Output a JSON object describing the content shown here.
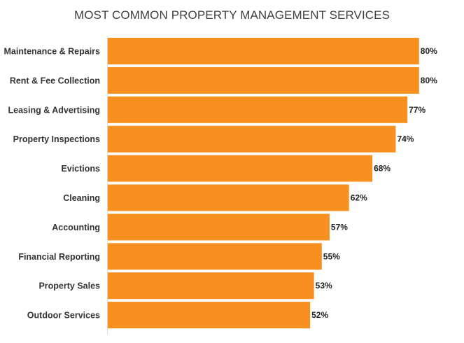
{
  "chart_data": {
    "type": "bar",
    "orientation": "horizontal",
    "title": "MOST COMMON PROPERTY MANAGEMENT SERVICES",
    "categories": [
      "Maintenance & Repairs",
      "Rent & Fee Collection",
      "Leasing & Advertising",
      "Property Inspections",
      "Evictions",
      "Cleaning",
      "Accounting",
      "Financial Reporting",
      "Property Sales",
      "Outdoor Services"
    ],
    "values": [
      80,
      80,
      77,
      74,
      68,
      62,
      57,
      55,
      53,
      52
    ],
    "value_labels": [
      "80%",
      "80%",
      "77%",
      "74%",
      "68%",
      "62%",
      "57%",
      "55%",
      "53%",
      "52%"
    ],
    "xlim": [
      0,
      100
    ],
    "grid": false,
    "legend": "none",
    "bar_color": "#f7901e"
  }
}
